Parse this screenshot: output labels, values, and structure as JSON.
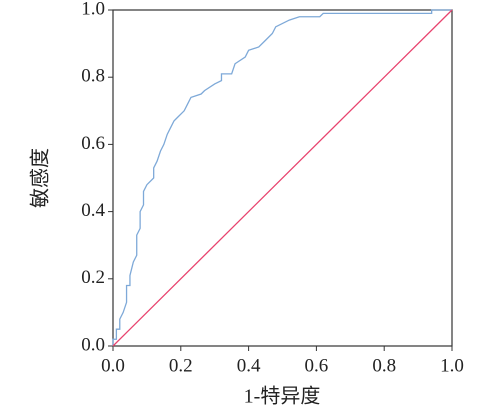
{
  "chart_data": {
    "type": "line",
    "x_label": "1-特异度",
    "y_label": "敏感度",
    "xlim": [
      0,
      1
    ],
    "ylim": [
      0,
      1
    ],
    "xticks": [
      {
        "value": 0,
        "label": "0.0"
      },
      0.2,
      0.4,
      0.6,
      0.8,
      {
        "value": 1,
        "label": "1.0"
      }
    ],
    "yticks": [
      {
        "value": 0,
        "label": "0.0"
      },
      0.2,
      0.4,
      0.6,
      0.8,
      {
        "value": 1,
        "label": "1.0"
      }
    ],
    "grid": false,
    "series": [
      {
        "color": "#7ea9d8",
        "x": [
          0,
          0,
          0.01,
          0.01,
          0.02,
          0.02,
          0.03,
          0.04,
          0.04,
          0.05,
          0.05,
          0.06,
          0.07,
          0.07,
          0.08,
          0.08,
          0.09,
          0.09,
          0.1,
          0.12,
          0.12,
          0.13,
          0.14,
          0.15,
          0.16,
          0.17,
          0.18,
          0.19,
          0.21,
          0.22,
          0.23,
          0.26,
          0.27,
          0.3,
          0.32,
          0.32,
          0.35,
          0.36,
          0.39,
          0.4,
          0.43,
          0.45,
          0.47,
          0.48,
          0.52,
          0.55,
          0.61,
          0.62,
          0.94,
          0.94,
          1.0
        ],
        "values": [
          0,
          0.02,
          0.02,
          0.05,
          0.05,
          0.08,
          0.1,
          0.13,
          0.18,
          0.18,
          0.21,
          0.25,
          0.27,
          0.33,
          0.35,
          0.4,
          0.42,
          0.46,
          0.48,
          0.5,
          0.53,
          0.55,
          0.58,
          0.6,
          0.63,
          0.65,
          0.67,
          0.68,
          0.7,
          0.72,
          0.74,
          0.75,
          0.76,
          0.78,
          0.79,
          0.81,
          0.81,
          0.84,
          0.86,
          0.88,
          0.89,
          0.91,
          0.93,
          0.95,
          0.97,
          0.98,
          0.98,
          0.99,
          0.99,
          1.0,
          1.0
        ]
      },
      {
        "color": "#e8436e",
        "x": [
          0,
          1
        ],
        "values": [
          0,
          1
        ]
      }
    ]
  }
}
